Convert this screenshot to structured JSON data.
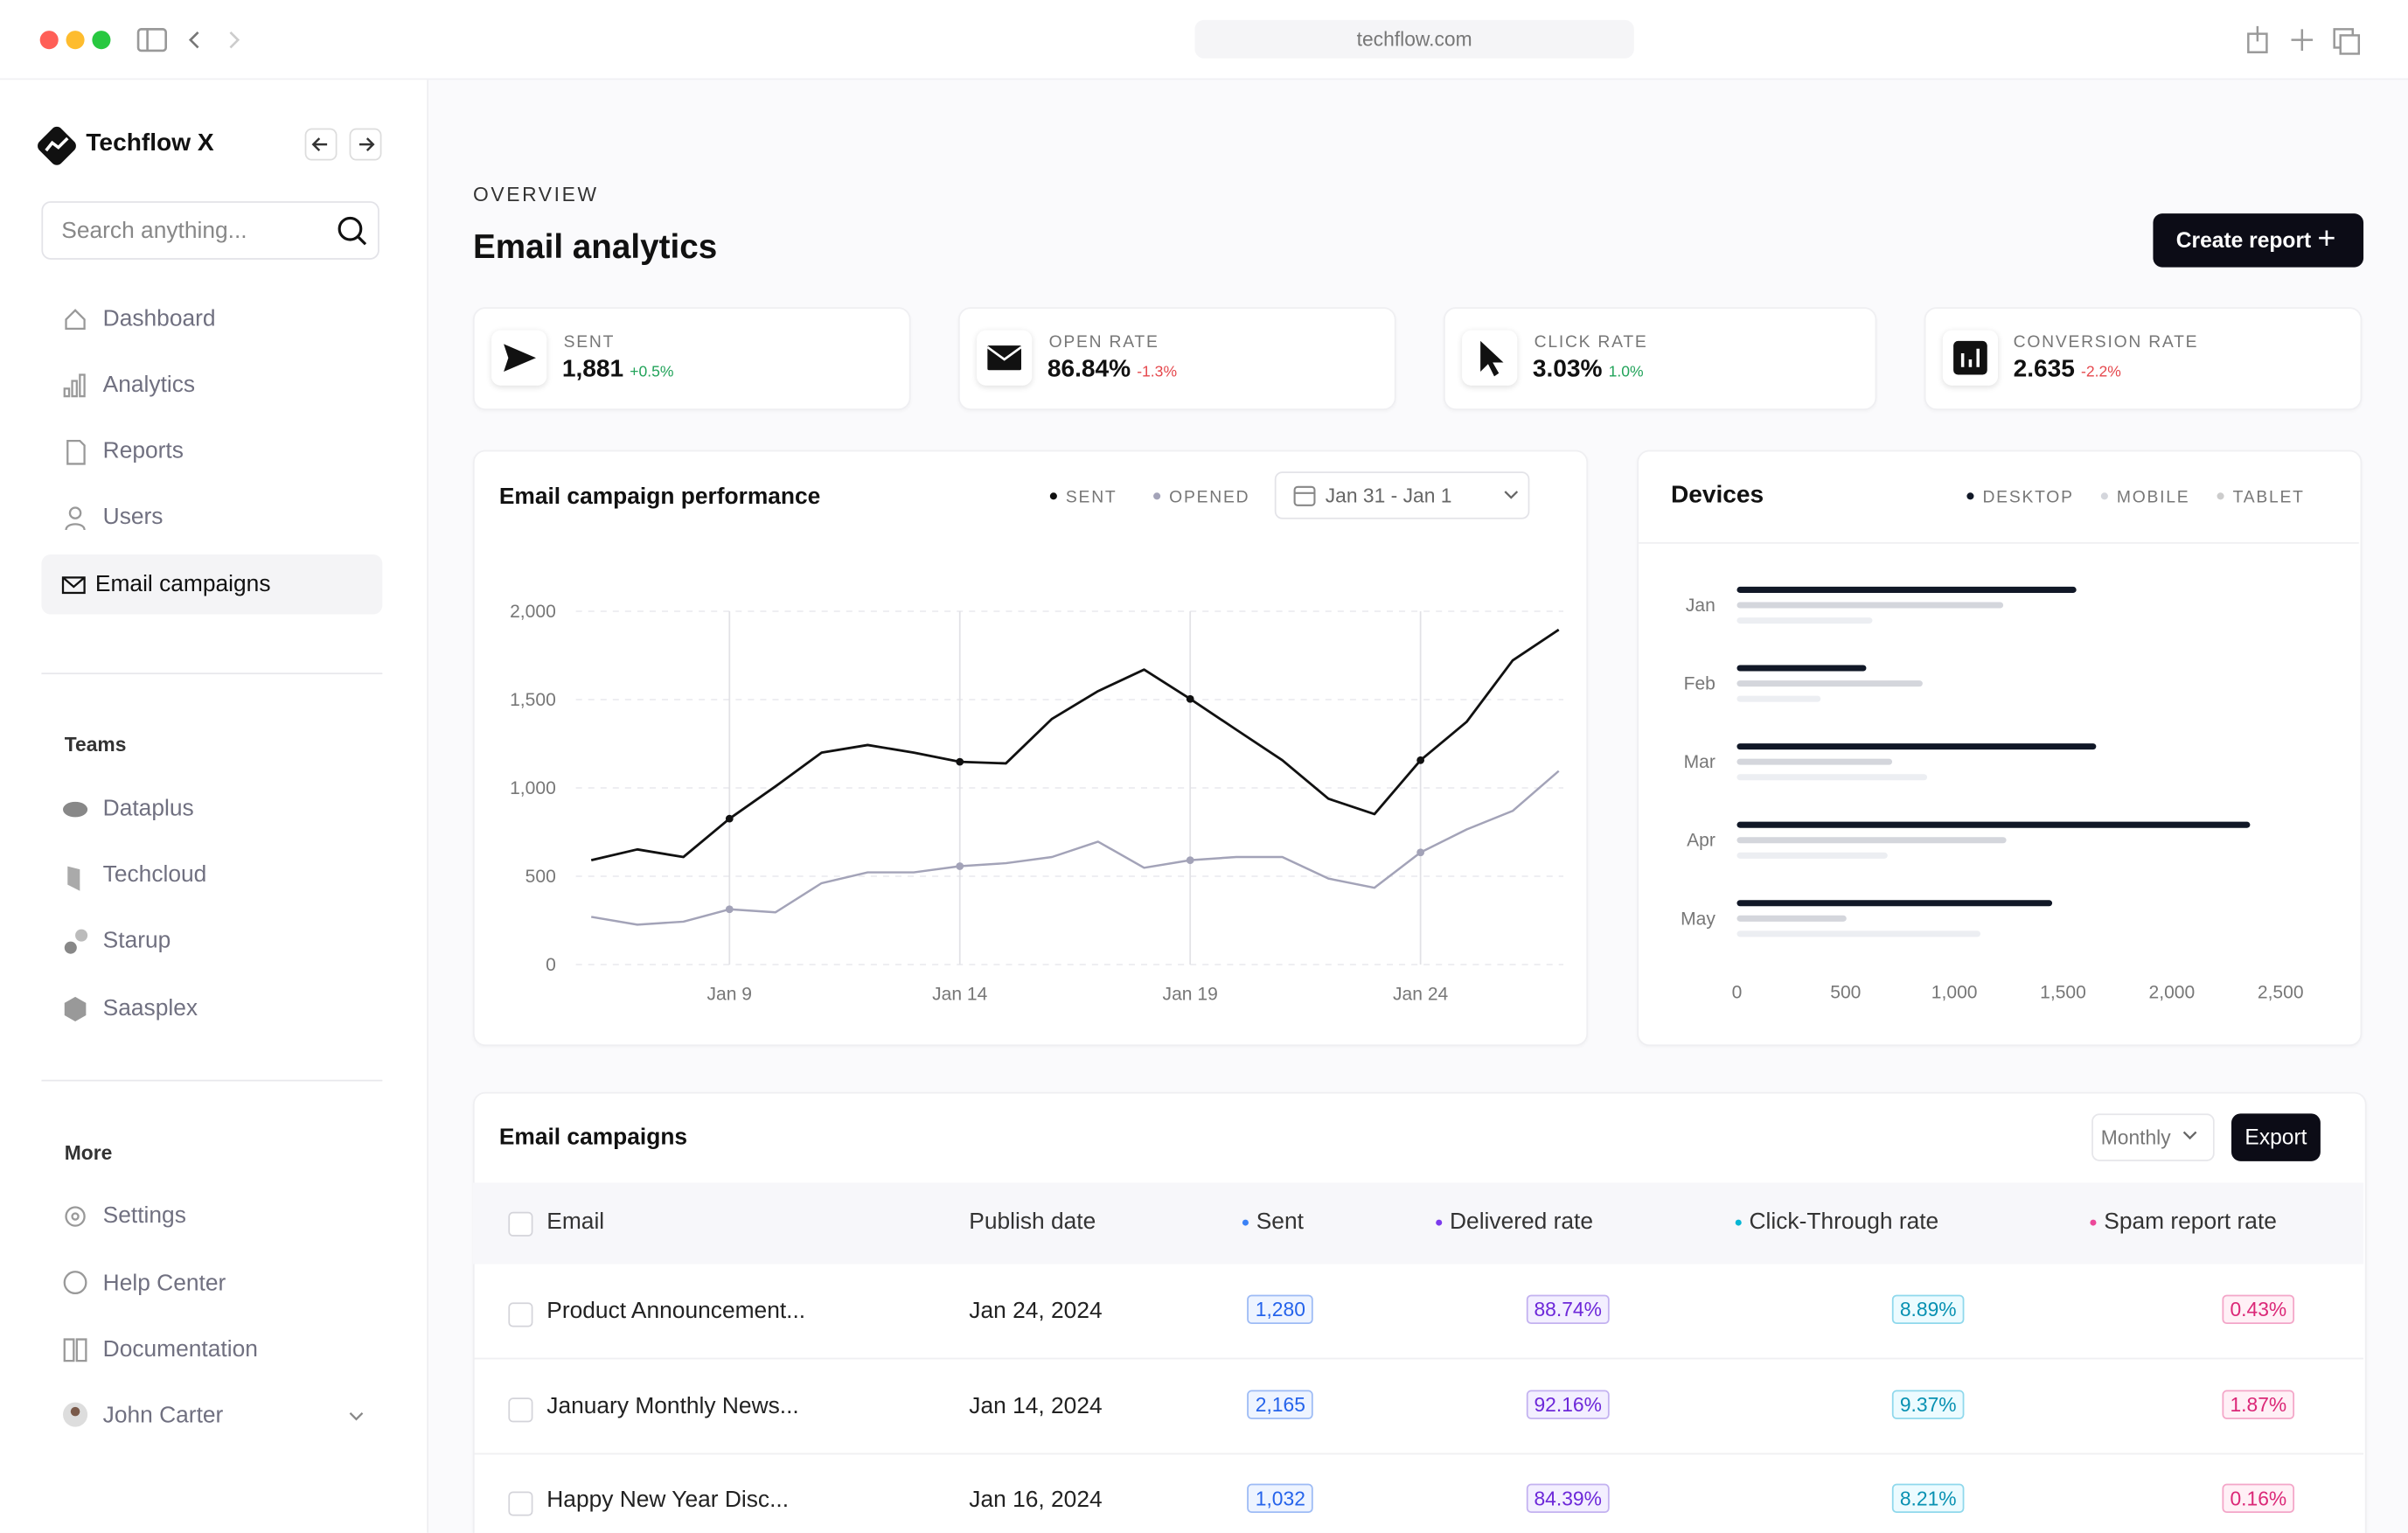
{
  "browser": {
    "url": "techflow.com"
  },
  "sidebar": {
    "brand": "Techflow X",
    "search_placeholder": "Search anything...",
    "nav": [
      "Dashboard",
      "Analytics",
      "Reports",
      "Users",
      "Email campaigns"
    ],
    "teams_title": "Teams",
    "teams": [
      "Dataplus",
      "Techcloud",
      "Starup",
      "Saasplex"
    ],
    "more_title": "More",
    "more": [
      "Settings",
      "Help Center",
      "Documentation"
    ],
    "user": "John Carter"
  },
  "header": {
    "eyebrow": "OVERVIEW",
    "title": "Email analytics",
    "button": "Create report"
  },
  "stats": [
    {
      "label": "SENT",
      "value": "1,881",
      "change": "+0.5%"
    },
    {
      "label": "OPEN RATE",
      "value": "86.84%",
      "change": "-1.3%"
    },
    {
      "label": "CLICK RATE",
      "value": "3.03%",
      "change": "1.0%"
    },
    {
      "label": "CONVERSION RATE",
      "value": "2.635",
      "change": "-2.2%"
    }
  ],
  "performance_chart": {
    "type": "line",
    "title": "Email campaign performance",
    "date_range": "Jan 31 - Jan 1",
    "categories": [
      null,
      null,
      null,
      "Jan 9",
      null,
      null,
      null,
      null,
      "Jan 14",
      null,
      null,
      null,
      null,
      "Jan 19",
      null,
      null,
      null,
      null,
      "Jan 24",
      null,
      null,
      null
    ],
    "series": [
      {
        "name": "SENT",
        "color": "#111111",
        "values": [
          591,
          652,
          609,
          826,
          1009,
          1200,
          1243,
          1200,
          1148,
          1139,
          1391,
          1548,
          1670,
          1504,
          1330,
          1157,
          939,
          852,
          1157,
          1374,
          1722,
          1896
        ]
      },
      {
        "name": "OPENED",
        "color": "#a3a3b8",
        "values": [
          270,
          226,
          243,
          313,
          296,
          461,
          522,
          522,
          557,
          574,
          609,
          696,
          548,
          591,
          609,
          609,
          487,
          435,
          635,
          765,
          870,
          1096
        ]
      }
    ],
    "ylim": [
      0,
      2000
    ],
    "yticks": [
      0,
      500,
      {
        "value": 1000,
        "label": "1,000"
      },
      {
        "value": 1500,
        "label": "1,500"
      },
      {
        "value": 2000,
        "label": "2,000"
      }
    ],
    "grid": true
  },
  "devices_chart": {
    "type": "hbar",
    "title": "Devices",
    "categories": [
      "Jan",
      "Feb",
      "Mar",
      "Apr",
      "May"
    ],
    "series": [
      {
        "name": "DESKTOP",
        "color": "#111827",
        "values": [
          1561,
          595,
          1652,
          2360,
          1450
        ]
      },
      {
        "name": "MOBILE",
        "color": "#d4d6dc",
        "values": [
          1225,
          854,
          714,
          1239,
          504
        ]
      },
      {
        "name": "TABLET",
        "color": "#eceef2",
        "values": [
          623,
          385,
          875,
          693,
          1120
        ]
      }
    ],
    "xlim": [
      0,
      2500
    ],
    "xticks": [
      0,
      500,
      {
        "value": 1000,
        "label": "1,000"
      },
      {
        "value": 1500,
        "label": "1,500"
      },
      {
        "value": 2000,
        "label": "2,000"
      },
      {
        "value": 2500,
        "label": "2,500"
      }
    ]
  },
  "campaigns_table": {
    "title": "Email campaigns",
    "period": "Monthly",
    "export": "Export",
    "columns": [
      "Email",
      "Publish date",
      "Sent",
      "Delivered rate",
      "Click-Through rate",
      "Spam report rate"
    ],
    "rows": [
      [
        "Product Announcement...",
        "Jan 24, 2024",
        "1,280",
        "88.74%",
        "8.89%",
        "0.43%"
      ],
      [
        "January Monthly News...",
        "Jan 14, 2024",
        "2,165",
        "92.16%",
        "9.37%",
        "1.87%"
      ],
      [
        "Happy New Year Disc...",
        "Jan 16, 2024",
        "1,032",
        "84.39%",
        "8.21%",
        "0.16%"
      ]
    ]
  }
}
